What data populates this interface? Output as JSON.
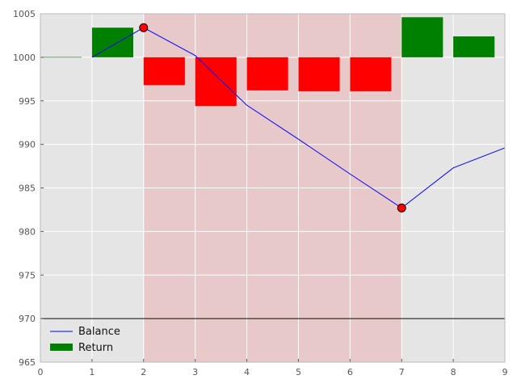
{
  "chart_data": {
    "type": "bar",
    "xlim": [
      0,
      9
    ],
    "ylim": [
      965,
      1005
    ],
    "x_ticks": [
      0,
      1,
      2,
      3,
      4,
      5,
      6,
      7,
      8,
      9
    ],
    "y_ticks": [
      965,
      970,
      975,
      980,
      985,
      990,
      995,
      1000,
      1005
    ],
    "grid": true,
    "legend_placement": "bottom-left",
    "baseline": 1000,
    "reference_line": 970,
    "drawdown_span": [
      2,
      7
    ],
    "series": [
      {
        "name": "Balance",
        "type": "line",
        "color": "#0000ff",
        "x": [
          1,
          2,
          3,
          4,
          5,
          6,
          7,
          8,
          9
        ],
        "y": [
          1000.0,
          1003.4,
          1000.2,
          994.5,
          990.6,
          986.6,
          982.7,
          987.3,
          989.6
        ]
      },
      {
        "name": "Return",
        "type": "bar",
        "x": [
          0,
          1,
          2,
          3,
          4,
          5,
          6,
          7,
          8
        ],
        "y": [
          0.0,
          3.4,
          -3.2,
          -5.6,
          -3.8,
          -3.9,
          -3.9,
          4.6,
          2.4
        ]
      }
    ],
    "markers": [
      {
        "x": 2,
        "y": 1003.4
      },
      {
        "x": 7,
        "y": 982.7
      }
    ],
    "colors": {
      "positive": "#008000",
      "negative": "#ff0000",
      "line": "#0000ff",
      "marker_fill": "#ff0000",
      "plot_bg": "#e5e5e5",
      "drawdown": "#e8c9ca",
      "grid": "#ffffff",
      "reference": "#000000"
    }
  }
}
